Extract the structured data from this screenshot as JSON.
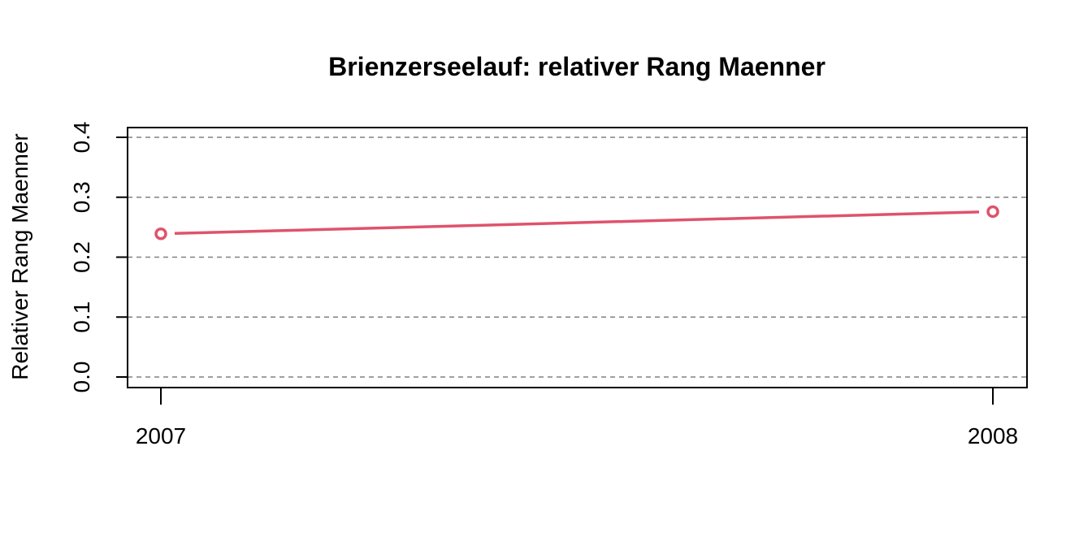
{
  "chart_data": {
    "type": "line",
    "title": "Brienzerseelauf: relativer Rang Maenner",
    "xlabel": "",
    "ylabel": "Relativer Rang Maenner",
    "x": [
      "2007",
      "2008"
    ],
    "series": [
      {
        "values": [
          0.239,
          0.276
        ],
        "color": "#DF536B"
      }
    ],
    "ylim": [
      0,
      0.4
    ],
    "yticks": [
      "0.0",
      "0.1",
      "0.2",
      "0.3",
      "0.4"
    ],
    "grid": "horizontal-dashed",
    "grid_color": "#808080"
  }
}
